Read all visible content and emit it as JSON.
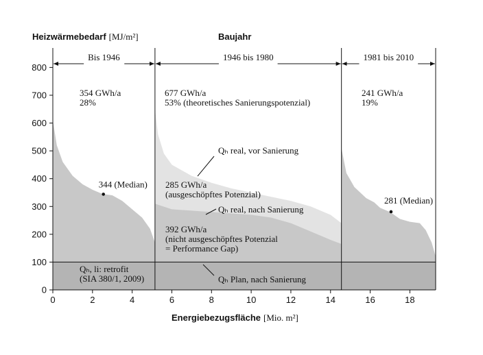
{
  "chart_data": {
    "type": "area",
    "y_label": "Heizwärmebedarf",
    "y_unit": "[MJ/m²]",
    "x_label": "Energiebezugsfläche",
    "x_unit": "[Mio. m²]",
    "period_title": "Baujahr",
    "periods": [
      "Bis 1946",
      "1946 bis 1980",
      "1981 bis 2010"
    ],
    "dividers": [
      5.15,
      14.55
    ],
    "xlim": [
      0,
      19.3
    ],
    "ylim": [
      0,
      870
    ],
    "xticks": [
      0,
      2,
      4,
      6,
      8,
      10,
      12,
      14,
      16,
      18
    ],
    "yticks": [
      0,
      100,
      200,
      300,
      400,
      500,
      600,
      700,
      800
    ],
    "series": [
      {
        "color": "#c8c8c8",
        "x": [
          0,
          0.2,
          0.5,
          1,
          1.5,
          2,
          2.5,
          3,
          3.5,
          4,
          4.5,
          4.9,
          5.15
        ],
        "values": [
          610,
          520,
          460,
          410,
          380,
          360,
          345,
          340,
          320,
          290,
          260,
          220,
          170
        ]
      },
      {
        "color": "#c8c8c8",
        "x": [
          14.55,
          14.8,
          15.2,
          15.8,
          16.2,
          16.5,
          17,
          17.5,
          18,
          18.5,
          18.8,
          19.1,
          19.3
        ],
        "values": [
          510,
          420,
          370,
          330,
          315,
          295,
          280,
          255,
          245,
          240,
          215,
          170,
          120
        ]
      },
      {
        "name": "Qₕ real, vor Sanierung",
        "color": "#e3e3e3",
        "x": [
          5.15,
          5.3,
          5.6,
          6,
          7,
          8,
          9,
          10,
          11,
          12,
          13,
          14,
          14.55
        ],
        "values": [
          650,
          560,
          490,
          450,
          410,
          385,
          365,
          350,
          335,
          320,
          300,
          270,
          240
        ]
      },
      {
        "name": "Qₕ real, nach Sanierung",
        "color": "#c8c8c8",
        "x": [
          5.15,
          6,
          8,
          10,
          11,
          12,
          13,
          14,
          14.55
        ],
        "values": [
          310,
          290,
          280,
          270,
          260,
          240,
          210,
          180,
          165
        ]
      },
      {
        "name": "Qₕ Plan, nach Sanierung",
        "color": "#b4b4b4",
        "x": [
          0,
          19.3
        ],
        "values": [
          100,
          100
        ]
      }
    ],
    "medians": {
      "x": [
        2.55,
        17.05
      ],
      "values": [
        344,
        281
      ],
      "value_labels": [
        "344 (Median)",
        "281 (Median)"
      ]
    },
    "annotations": [
      [
        "354 GWh/a",
        "28%"
      ],
      [
        "677 GWh/a",
        "53% (theoretisches Sanierungspotenzial)"
      ],
      [
        "241 GWh/a",
        "19%"
      ],
      [
        "285 GWh/a",
        "(ausgeschöpftes Potenzial)"
      ],
      [
        "392 GWh/a",
        "(nicht ausgeschöpftes Potenzial",
        "= Performance Gap)"
      ],
      [
        "Qₕ, li: retrofit",
        "(SIA 380/1, 2009)"
      ]
    ]
  }
}
